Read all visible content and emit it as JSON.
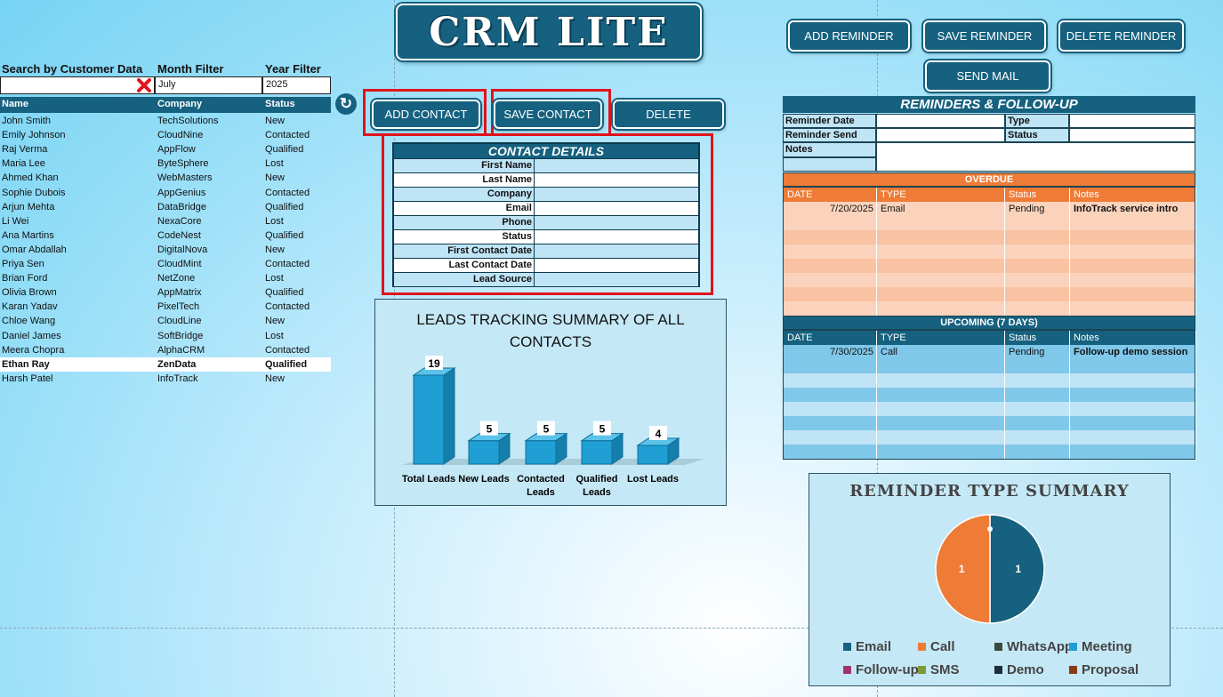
{
  "title": "CRM LITE",
  "filters": {
    "search_label": "Search by Customer Data",
    "month_label": "Month Filter",
    "year_label": "Year Filter",
    "search_value": "",
    "month_value": "July",
    "year_value": "2025"
  },
  "list": {
    "columns": [
      "Name",
      "Company",
      "Status"
    ],
    "rows": [
      [
        "John Smith",
        "TechSolutions",
        "New"
      ],
      [
        "Emily Johnson",
        "CloudNine",
        "Contacted"
      ],
      [
        "Raj Verma",
        "AppFlow",
        "Qualified"
      ],
      [
        "Maria Lee",
        "ByteSphere",
        "Lost"
      ],
      [
        "Ahmed Khan",
        "WebMasters",
        "New"
      ],
      [
        "Sophie Dubois",
        "AppGenius",
        "Contacted"
      ],
      [
        "Arjun Mehta",
        "DataBridge",
        "Qualified"
      ],
      [
        "Li Wei",
        "NexaCore",
        "Lost"
      ],
      [
        "Ana Martins",
        "CodeNest",
        "Qualified"
      ],
      [
        "Omar Abdallah",
        "DigitalNova",
        "New"
      ],
      [
        "Priya Sen",
        "CloudMint",
        "Contacted"
      ],
      [
        "Brian Ford",
        "NetZone",
        "Lost"
      ],
      [
        "Olivia Brown",
        "AppMatrix",
        "Qualified"
      ],
      [
        "Karan Yadav",
        "PixelTech",
        "Contacted"
      ],
      [
        "Chloe Wang",
        "CloudLine",
        "New"
      ],
      [
        "Daniel James",
        "SoftBridge",
        "Lost"
      ],
      [
        "Meera Chopra",
        "AlphaCRM",
        "Contacted"
      ],
      [
        "Ethan Ray",
        "ZenData",
        "Qualified"
      ],
      [
        "Harsh Patel",
        "InfoTrack",
        "New"
      ]
    ],
    "selected_index": 17
  },
  "buttons": {
    "add_contact": "ADD CONTACT",
    "save_contact": "SAVE CONTACT",
    "delete": "DELETE",
    "add_reminder": "ADD REMINDER",
    "save_reminder": "SAVE REMINDER",
    "delete_reminder": "DELETE REMINDER",
    "send_mail": "SEND MAIL"
  },
  "contact_details": {
    "title": "CONTACT DETAILS",
    "fields": [
      "First Name",
      "Last Name",
      "Company",
      "Email",
      "Phone",
      "Status",
      "First Contact Date",
      "Last Contact Date",
      "Lead Source"
    ]
  },
  "reminders": {
    "title": "REMINDERS & FOLLOW-UP",
    "reminder_date_label": "Reminder Date",
    "reminder_send_label": "Reminder Send",
    "type_label": "Type",
    "status_label": "Status",
    "notes_label": "Notes",
    "overdue_label": "OVERDUE",
    "upcoming_label": "UPCOMING (7 DAYS)",
    "columns": [
      "DATE",
      "TYPE",
      "Status",
      "Notes"
    ],
    "overdue_rows": [
      [
        "7/20/2025",
        "Email",
        "Pending",
        "InfoTrack service intro"
      ]
    ],
    "upcoming_rows": [
      [
        "7/30/2025",
        "Call",
        "Pending",
        "Follow-up demo session"
      ]
    ]
  },
  "colors": {
    "primary": "#15617f",
    "orange_header": "#ee7b36",
    "orange_light": "#fbd3bc",
    "orange_mid": "#f9c2a2",
    "blue_row": "#7fc8ea",
    "blue_light": "#bfe4f6"
  },
  "chart_data": [
    {
      "type": "bar",
      "title": "LEADS TRACKING SUMMARY OF ALL CONTACTS",
      "categories": [
        "Total Leads",
        "New Leads",
        "Contacted Leads",
        "Qualified Leads",
        "Lost Leads"
      ],
      "values": [
        19,
        5,
        5,
        5,
        4
      ],
      "ylim": [
        0,
        19
      ],
      "grid": false
    },
    {
      "type": "pie",
      "title": "REMINDER TYPE SUMMARY",
      "categories": [
        "Email",
        "Call",
        "WhatsApp",
        "Meeting",
        "Follow-up",
        "SMS",
        "Demo",
        "Proposal"
      ],
      "values": [
        1,
        1,
        0,
        0,
        0,
        0,
        0,
        0
      ],
      "colors": [
        "#15617f",
        "#ee7b36",
        "#3a4a3f",
        "#1f9fd3",
        "#a0356c",
        "#7d9b3a",
        "#1b2f3a",
        "#8a3a12"
      ],
      "legend_position": "bottom"
    }
  ]
}
